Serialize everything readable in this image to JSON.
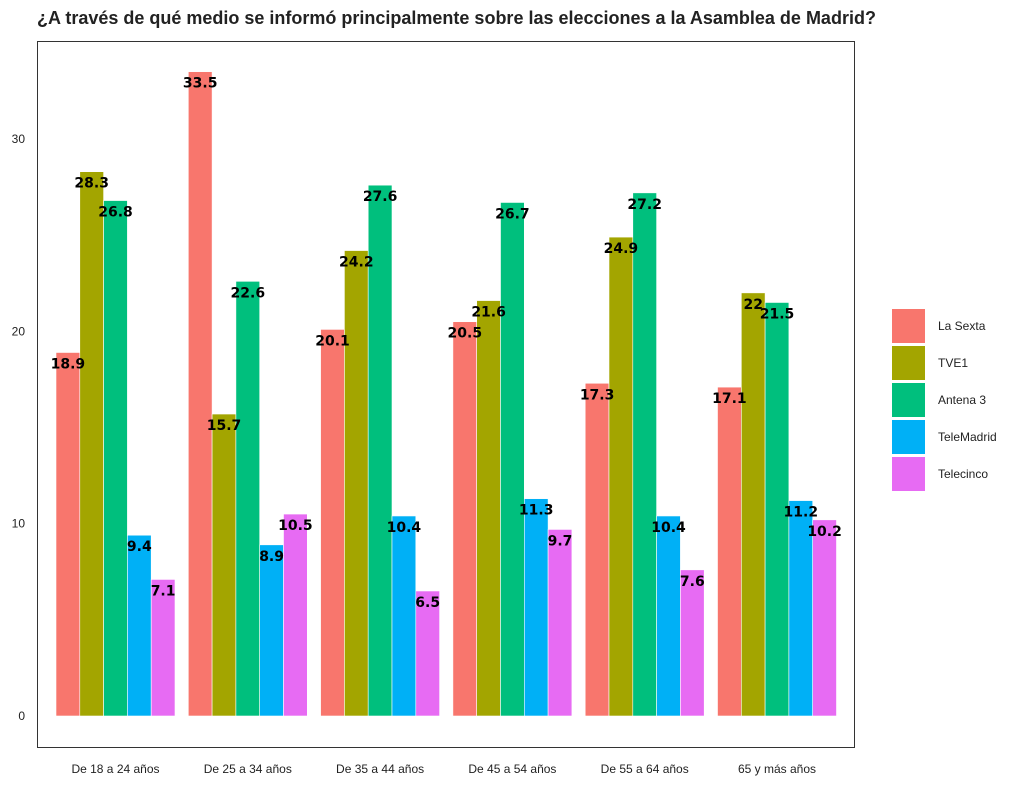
{
  "chart_data": {
    "type": "bar",
    "title": "¿A través de qué medio se informó principalmente sobre las elecciones a la Asamblea de Madrid?",
    "xlabel": "",
    "ylabel": "",
    "ylim": [
      0,
      35
    ],
    "yticks": [
      0,
      10,
      20,
      30
    ],
    "grid": false,
    "legend_position": "right",
    "categories": [
      "De 18 a 24 años",
      "De 25 a 34 años",
      "De 35 a 44 años",
      "De 45 a 54 años",
      "De 55 a 64 años",
      "65 y más años"
    ],
    "series": [
      {
        "name": "La Sexta",
        "color": "#F8766D",
        "values": [
          18.9,
          33.5,
          20.1,
          20.5,
          17.3,
          17.1
        ]
      },
      {
        "name": "TVE1",
        "color": "#A3A500",
        "values": [
          28.3,
          15.7,
          24.2,
          21.6,
          24.9,
          22
        ]
      },
      {
        "name": "Antena 3",
        "color": "#00BF7D",
        "values": [
          26.8,
          22.6,
          27.6,
          26.7,
          27.2,
          21.5
        ]
      },
      {
        "name": "TeleMadrid",
        "color": "#00B0F6",
        "values": [
          9.4,
          8.9,
          10.4,
          11.3,
          10.4,
          11.2
        ]
      },
      {
        "name": "Telecinco",
        "color": "#E76BF3",
        "values": [
          7.1,
          10.5,
          6.5,
          9.7,
          7.6,
          10.2
        ]
      }
    ]
  }
}
